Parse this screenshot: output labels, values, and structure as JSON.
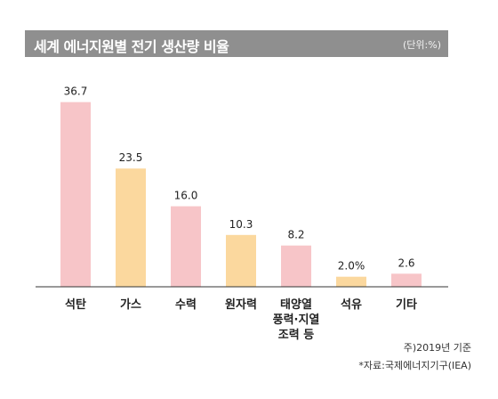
{
  "header": {
    "title": "세계 에너지원별 전기 생산량 비율",
    "unit": "(단위:%)"
  },
  "chart_data": {
    "type": "bar",
    "title": "세계 에너지원별 전기 생산량 비율",
    "unit_label": "(단위:%)",
    "categories": [
      [
        "석탄"
      ],
      [
        "가스"
      ],
      [
        "수력"
      ],
      [
        "원자력"
      ],
      [
        "태양열",
        "풍력·지열",
        "조력 등"
      ],
      [
        "석유"
      ],
      [
        "기타"
      ]
    ],
    "values": [
      36.7,
      23.5,
      16.0,
      10.3,
      8.2,
      2.0,
      2.6
    ],
    "value_labels": [
      "36.7",
      "23.5",
      "16.0",
      "10.3",
      "8.2",
      "2.0%",
      "2.6"
    ],
    "colors": [
      "#f7c5c8",
      "#fbd89e",
      "#f7c5c8",
      "#fbd89e",
      "#f7c5c8",
      "#fbd89e",
      "#f7c5c8"
    ],
    "ylim": [
      0,
      40
    ],
    "grid": false,
    "legend": "none"
  },
  "notes": {
    "base_year": "주)2019년 기준",
    "source": "*자료:국제에너지기구(IEA)"
  }
}
